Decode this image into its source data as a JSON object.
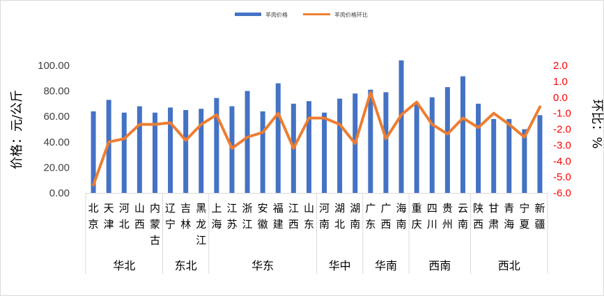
{
  "chart_data": {
    "type": "bar",
    "categories": [
      "北京",
      "天津",
      "河北",
      "山西",
      "内蒙古",
      "辽宁",
      "吉林",
      "黑龙江",
      "上海",
      "江苏",
      "浙江",
      "安徽",
      "福建",
      "江西",
      "山东",
      "河南",
      "湖北",
      "湖南",
      "广东",
      "广西",
      "海南",
      "重庆",
      "四川",
      "贵州",
      "云南",
      "陕西",
      "甘肃",
      "青海",
      "宁夏",
      "新疆"
    ],
    "groups": [
      {
        "name": "华北",
        "count": 5
      },
      {
        "name": "东北",
        "count": 3
      },
      {
        "name": "华东",
        "count": 7
      },
      {
        "name": "华中",
        "count": 3
      },
      {
        "name": "华南",
        "count": 3
      },
      {
        "name": "西南",
        "count": 4
      },
      {
        "name": "西北",
        "count": 5
      }
    ],
    "series": [
      {
        "name": "羊肉价格",
        "type": "bar",
        "axis": "left",
        "color": "#4472c4",
        "values": [
          64,
          73,
          63,
          68,
          63,
          67,
          65,
          66,
          74.5,
          68,
          80,
          64,
          86,
          70,
          72,
          63,
          74,
          78,
          81,
          79,
          104,
          70,
          75,
          83,
          91.5,
          70,
          58,
          58,
          50,
          61
        ]
      },
      {
        "name": "羊肉价格环比",
        "type": "line",
        "axis": "right",
        "color": "#ed7d31",
        "values": [
          -5.5,
          -2.8,
          -2.6,
          -1.7,
          -1.7,
          -1.6,
          -2.7,
          -1.7,
          -1.1,
          -3.2,
          -2.5,
          -2.2,
          -1.0,
          -3.2,
          -1.3,
          -1.3,
          -1.7,
          -2.9,
          0.3,
          -2.6,
          -1.1,
          -0.3,
          -1.7,
          -2.3,
          -1.3,
          -1.9,
          -1.0,
          -1.7,
          -2.5,
          -0.6
        ]
      }
    ],
    "y_left": {
      "label": "价格：元/公斤",
      "ylim": [
        0,
        100
      ],
      "ticks": [
        "0.00",
        "20.00",
        "40.00",
        "60.00",
        "80.00",
        "100.00"
      ]
    },
    "y_right": {
      "label": "环比：%",
      "ylim": [
        -6,
        2
      ],
      "ticks": [
        "-6.0",
        "-5.0",
        "-4.0",
        "-3.0",
        "-2.0",
        "-1.0",
        "0.0",
        "1.0",
        "2.0"
      ],
      "tick_color": "#ff0000"
    },
    "legend_position": "top-center",
    "grid": false
  }
}
